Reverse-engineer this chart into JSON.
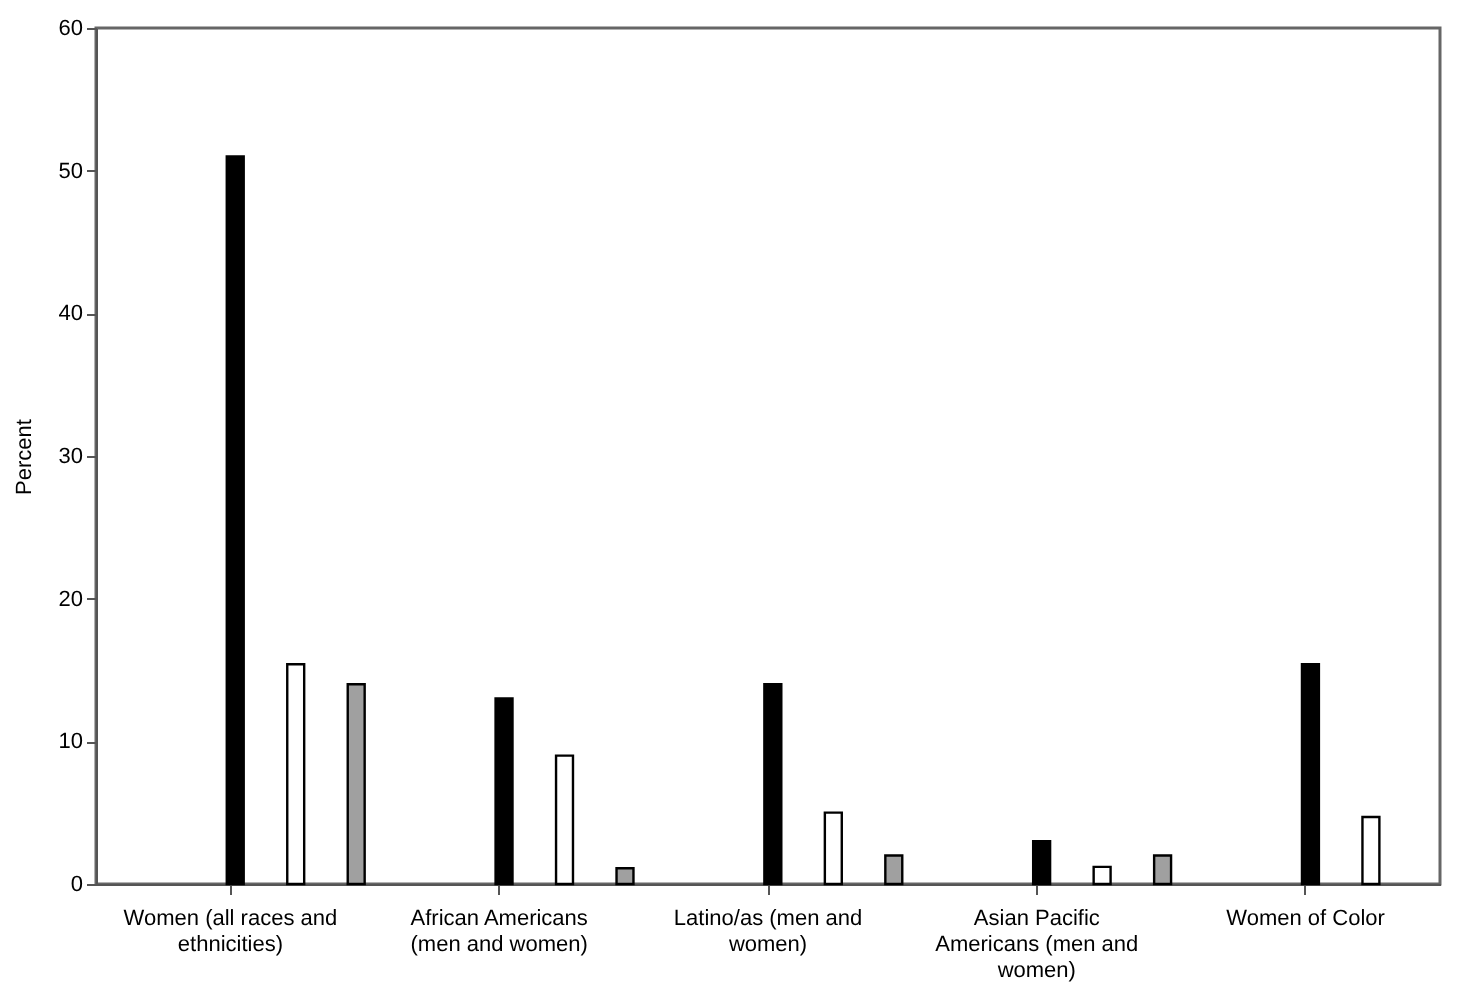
{
  "chart_data": {
    "type": "bar",
    "ylabel": "Percent",
    "categories": [
      "Women (all races and ethnicities)",
      "African Americans (men and women)",
      "Latino/as (men and women)",
      "Asian Pacific Americans (men and women)",
      "Women of Color"
    ],
    "series": [
      {
        "color": "#000000",
        "values": [
          51,
          13,
          14,
          3,
          15.4
        ]
      },
      {
        "color": "#ffffff",
        "values": [
          15.4,
          9,
          5,
          1.2,
          4.7
        ]
      },
      {
        "color": "#a0a0a0",
        "values": [
          14,
          1.1,
          2,
          2,
          null
        ]
      }
    ],
    "ylim": [
      0,
      60
    ],
    "yticks": [
      0,
      10,
      20,
      30,
      40,
      50,
      60
    ],
    "grid": false,
    "legend": false
  }
}
